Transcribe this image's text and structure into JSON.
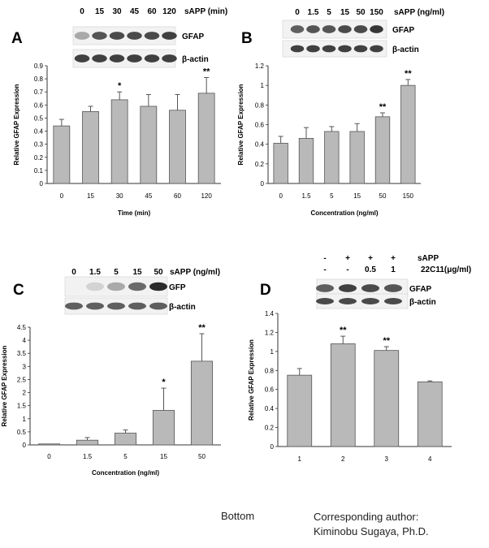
{
  "footer": {
    "bottom_label": "Bottom",
    "author_heading": "Corresponding author:",
    "author_name": "Kiminobu Sugaya, Ph.D."
  },
  "colors": {
    "bar": "#b9b9b9",
    "bar_stroke": "#555555",
    "axis": "#333333",
    "blot_bg": "#f2f2f2",
    "blot_band": "#262626"
  },
  "panels": [
    {
      "panel_label": "A",
      "blot": {
        "treatment_label": "sAPP (min)",
        "lane_labels": [
          "0",
          "15",
          "30",
          "45",
          "60",
          "120"
        ],
        "rows": [
          {
            "label": "GFAP",
            "band_intensities": [
              0.35,
              0.75,
              0.8,
              0.8,
              0.8,
              0.85
            ]
          },
          {
            "label": "β-actin",
            "band_intensities": [
              0.85,
              0.85,
              0.85,
              0.85,
              0.85,
              0.85
            ]
          }
        ]
      }
    },
    {
      "panel_label": "B",
      "blot": {
        "treatment_label": "sAPP (ng/ml)",
        "lane_labels": [
          "0",
          "1.5",
          "5",
          "15",
          "50",
          "150"
        ],
        "rows": [
          {
            "label": "GFAP",
            "band_intensities": [
              0.7,
              0.75,
              0.75,
              0.8,
              0.8,
              0.9
            ]
          },
          {
            "label": "β-actin",
            "band_intensities": [
              0.85,
              0.85,
              0.85,
              0.85,
              0.85,
              0.85
            ]
          }
        ]
      }
    },
    {
      "panel_label": "C",
      "blot": {
        "treatment_label": "sAPP (ng/ml)",
        "lane_labels": [
          "0",
          "1.5",
          "5",
          "15",
          "50"
        ],
        "rows": [
          {
            "label": "GFP",
            "band_intensities": [
              0.0,
              0.15,
              0.35,
              0.65,
              0.95
            ]
          },
          {
            "label": "β-actin",
            "band_intensities": [
              0.7,
              0.7,
              0.7,
              0.7,
              0.7
            ]
          }
        ]
      }
    },
    {
      "panel_label": "D",
      "blot": {
        "treatment_rows": [
          {
            "label": "sAPP",
            "values": [
              "-",
              "+",
              "+",
              "+"
            ]
          },
          {
            "label": "22C11(μg/ml)",
            "values": [
              "-",
              "-",
              "0.5",
              "1"
            ]
          }
        ],
        "rows": [
          {
            "label": "GFAP",
            "band_intensities": [
              0.7,
              0.85,
              0.8,
              0.75
            ]
          },
          {
            "label": "β-actin",
            "band_intensities": [
              0.8,
              0.8,
              0.8,
              0.8
            ]
          }
        ]
      }
    }
  ],
  "chart_data": [
    {
      "type": "bar",
      "title": "",
      "xlabel": "Time (min)",
      "ylabel": "Relative GFAP Expression",
      "categories": [
        "0",
        "15",
        "30",
        "45",
        "60",
        "120"
      ],
      "values": [
        0.44,
        0.55,
        0.64,
        0.59,
        0.56,
        0.69
      ],
      "errors": [
        0.05,
        0.04,
        0.06,
        0.09,
        0.12,
        0.12
      ],
      "significance": [
        "",
        "",
        "*",
        "",
        "",
        "**"
      ],
      "ylim": [
        0,
        0.9
      ],
      "yticks": [
        "0",
        "0.1",
        "0.2",
        "0.3",
        "0.4",
        "0.5",
        "0.6",
        "0.7",
        "0.8",
        "0.9"
      ]
    },
    {
      "type": "bar",
      "title": "",
      "xlabel": "Concentration (ng/ml)",
      "ylabel": "Relative GFAP Expression",
      "categories": [
        "0",
        "1.5",
        "5",
        "15",
        "50",
        "150"
      ],
      "values": [
        0.41,
        0.46,
        0.53,
        0.53,
        0.68,
        1.0
      ],
      "errors": [
        0.07,
        0.11,
        0.05,
        0.08,
        0.04,
        0.06
      ],
      "significance": [
        "",
        "",
        "",
        "",
        "**",
        "**"
      ],
      "ylim": [
        0,
        1.2
      ],
      "yticks": [
        "0",
        "0.2",
        "0.4",
        "0.6",
        "0.8",
        "1",
        "1.2"
      ]
    },
    {
      "type": "bar",
      "title": "",
      "xlabel": "Concentration (ng/ml)",
      "ylabel": "Relative GFAP Expression",
      "categories": [
        "0",
        "1.5",
        "5",
        "15",
        "50"
      ],
      "values": [
        0.0,
        0.18,
        0.45,
        1.32,
        3.2
      ],
      "errors": [
        0.0,
        0.1,
        0.12,
        0.85,
        1.05
      ],
      "significance": [
        "",
        "",
        "",
        "*",
        "**"
      ],
      "ylim": [
        0,
        4.5
      ],
      "yticks": [
        "0",
        "0.5",
        "1",
        "1.5",
        "2",
        "2.5",
        "3",
        "3.5",
        "4",
        "4.5"
      ]
    },
    {
      "type": "bar",
      "title": "",
      "xlabel": "",
      "ylabel": "Relative GFAP Expression",
      "categories": [
        "1",
        "2",
        "3",
        "4"
      ],
      "values": [
        0.75,
        1.08,
        1.01,
        0.68
      ],
      "errors": [
        0.07,
        0.08,
        0.04,
        0.01
      ],
      "significance": [
        "",
        "**",
        "**",
        ""
      ],
      "ylim": [
        0,
        1.4
      ],
      "yticks": [
        "0",
        "0.2",
        "0.4",
        "0.6",
        "0.8",
        "1",
        "1.2",
        "1.4"
      ]
    }
  ]
}
